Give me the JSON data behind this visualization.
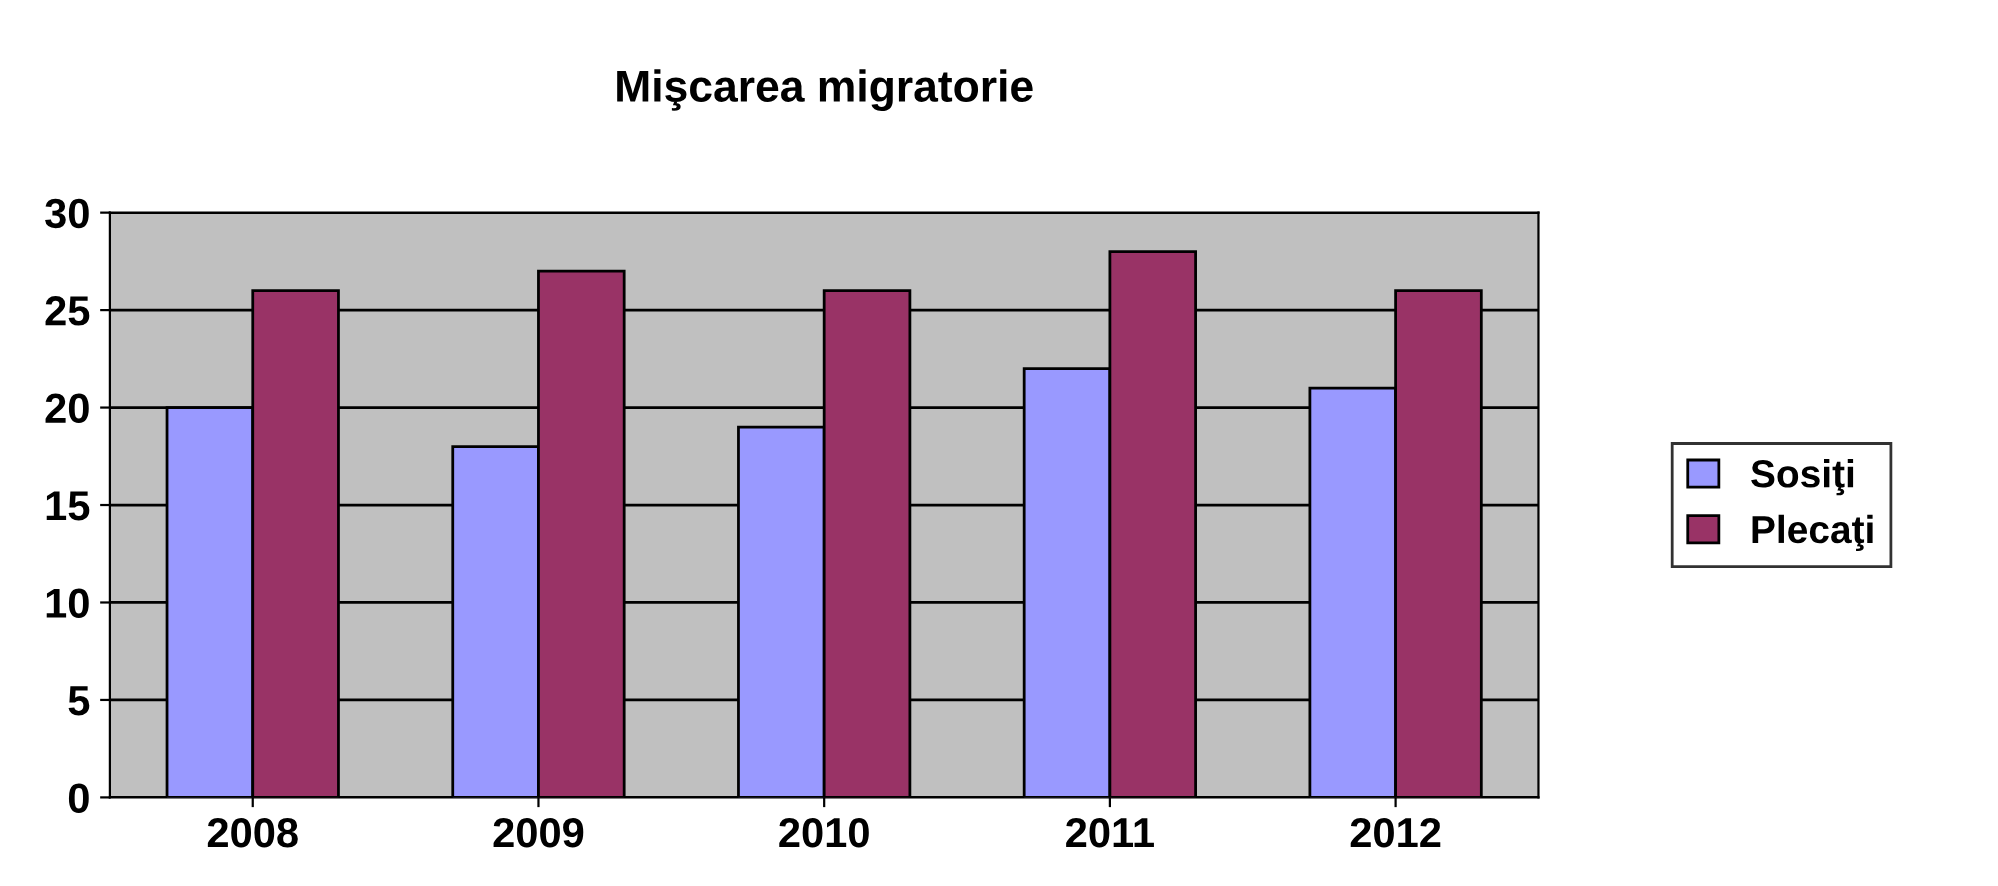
{
  "chart_data": {
    "type": "bar",
    "title": "Mişcarea migratorie",
    "categories": [
      "2008",
      "2009",
      "2010",
      "2011",
      "2012"
    ],
    "series": [
      {
        "name": "Sosiţi",
        "color": "#9999ff",
        "values": [
          20,
          18,
          19,
          22,
          21
        ]
      },
      {
        "name": "Plecaţi",
        "color": "#993366",
        "values": [
          26,
          27,
          26,
          28,
          26
        ]
      }
    ],
    "ylim": [
      0,
      30
    ],
    "yticks": [
      0,
      5,
      10,
      15,
      20,
      25,
      30
    ],
    "grid": "y",
    "legend": "right"
  }
}
